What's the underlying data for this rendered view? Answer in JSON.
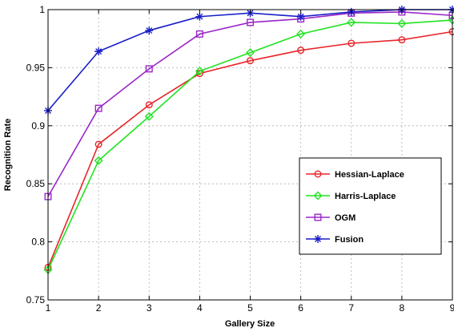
{
  "chart_data": {
    "type": "line",
    "title": "",
    "xlabel": "Gallery Size",
    "ylabel": "Recognition Rate",
    "x": [
      1,
      2,
      3,
      4,
      5,
      6,
      7,
      8,
      9
    ],
    "xlim": [
      1,
      9
    ],
    "ylim": [
      0.75,
      1
    ],
    "x_ticks": [
      "1",
      "2",
      "3",
      "4",
      "5",
      "6",
      "7",
      "8",
      "9"
    ],
    "y_ticks": [
      "0.75",
      "0.8",
      "0.85",
      "0.9",
      "0.95",
      "1"
    ],
    "grid": true,
    "legend_position": "lower-right",
    "series": [
      {
        "name": "Hessian-Laplace",
        "color": "#e8252a",
        "marker": "circle",
        "values": [
          0.778,
          0.884,
          0.918,
          0.945,
          0.956,
          0.965,
          0.971,
          0.974,
          0.981
        ]
      },
      {
        "name": "Harris-Laplace",
        "color": "#21e321",
        "marker": "diamond",
        "values": [
          0.776,
          0.87,
          0.908,
          0.947,
          0.963,
          0.979,
          0.989,
          0.988,
          0.991
        ]
      },
      {
        "name": "OGM",
        "color": "#9b27c8",
        "marker": "square",
        "values": [
          0.839,
          0.915,
          0.949,
          0.979,
          0.989,
          0.992,
          0.997,
          0.998,
          0.995
        ]
      },
      {
        "name": "Fusion",
        "color": "#1a1fc8",
        "marker": "star",
        "values": [
          0.913,
          0.964,
          0.982,
          0.994,
          0.997,
          0.994,
          0.998,
          1.0,
          1.0
        ]
      }
    ]
  }
}
